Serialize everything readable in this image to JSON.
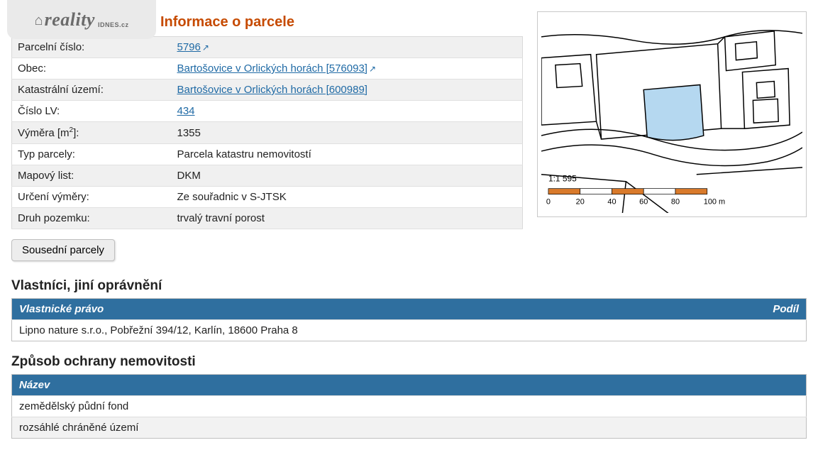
{
  "logo": {
    "brand": "reality",
    "suffix": "IDNES.cz"
  },
  "page_title": "Informace o parcele",
  "info_rows": [
    {
      "label": "Parcelní číslo:",
      "value": "5796",
      "link": true,
      "ext": true
    },
    {
      "label": "Obec:",
      "value": "Bartošovice v Orlických horách [576093]",
      "link": true,
      "ext": true
    },
    {
      "label": "Katastrální území:",
      "value": "Bartošovice v Orlických horách [600989]",
      "link": true,
      "ext": false
    },
    {
      "label": "Číslo LV:",
      "value": "434",
      "link": true,
      "ext": false
    },
    {
      "label_html": "Výměra [m<sup>2</sup>]:",
      "value": "1355",
      "link": false
    },
    {
      "label": "Typ parcely:",
      "value": "Parcela katastru nemovitostí",
      "link": false
    },
    {
      "label": "Mapový list:",
      "value": "DKM",
      "link": false
    },
    {
      "label": "Určení výměry:",
      "value": "Ze souřadnic v S-JTSK",
      "link": false
    },
    {
      "label": "Druh pozemku:",
      "value": "trvalý travní porost",
      "link": false
    }
  ],
  "adjacent_button": "Sousední parcely",
  "owners_title": "Vlastníci, jiní oprávnění",
  "owners_table": {
    "col_left": "Vlastnické právo",
    "col_right": "Podíl",
    "rows": [
      {
        "name": "Lipno nature s.r.o., Pobřežní 394/12, Karlín, 18600 Praha 8",
        "share": ""
      }
    ]
  },
  "protection_title": "Způsob ochrany nemovitosti",
  "protection_table": {
    "col": "Název",
    "rows": [
      "zemědělský půdní fond",
      "rozsáhlé chráněné území"
    ]
  },
  "map": {
    "scale_label": "1:1 595",
    "scale_ticks": [
      "0",
      "20",
      "40",
      "60",
      "80",
      "100 m"
    ],
    "highlight_color": "#b5d8f0",
    "scale_bar_color": "#d97a2b",
    "line_color": "#000000"
  }
}
